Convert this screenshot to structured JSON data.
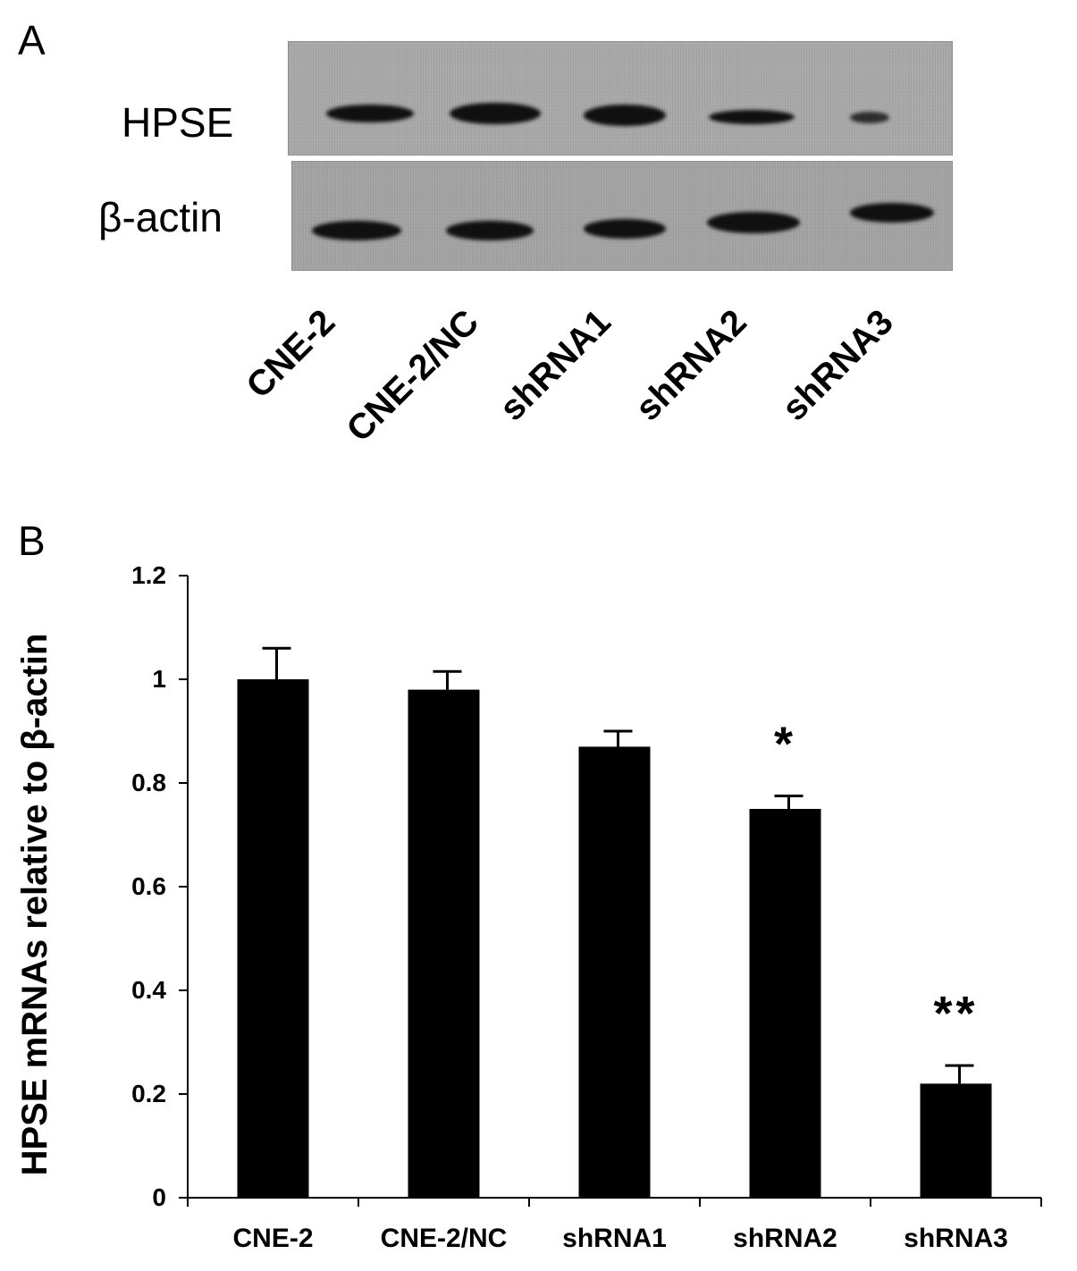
{
  "panel_a": {
    "letter": "A",
    "row_labels": {
      "hpse": "HPSE",
      "actin": "β-actin"
    },
    "lanes": [
      "CNE-2",
      "CNE-2/NC",
      "shRNA1",
      "shRNA2",
      "shRNA3"
    ]
  },
  "panel_b": {
    "letter": "B"
  },
  "chart_data": {
    "type": "bar",
    "categories": [
      "CNE-2",
      "CNE-2/NC",
      "shRNA1",
      "shRNA2",
      "shRNA3"
    ],
    "values": [
      1.0,
      0.98,
      0.87,
      0.75,
      0.22
    ],
    "error": [
      0.06,
      0.035,
      0.03,
      0.025,
      0.035
    ],
    "annotations": [
      "",
      "",
      "",
      "*",
      "**"
    ],
    "ylabel": "HPSE mRNAs relative to β-actin",
    "xlabel": "",
    "ylim": [
      0,
      1.2
    ],
    "yticks": [
      "0",
      "0.2",
      "0.4",
      "0.6",
      "0.8",
      "1",
      "1.2"
    ],
    "bar_color": "#000000",
    "grid": false
  }
}
